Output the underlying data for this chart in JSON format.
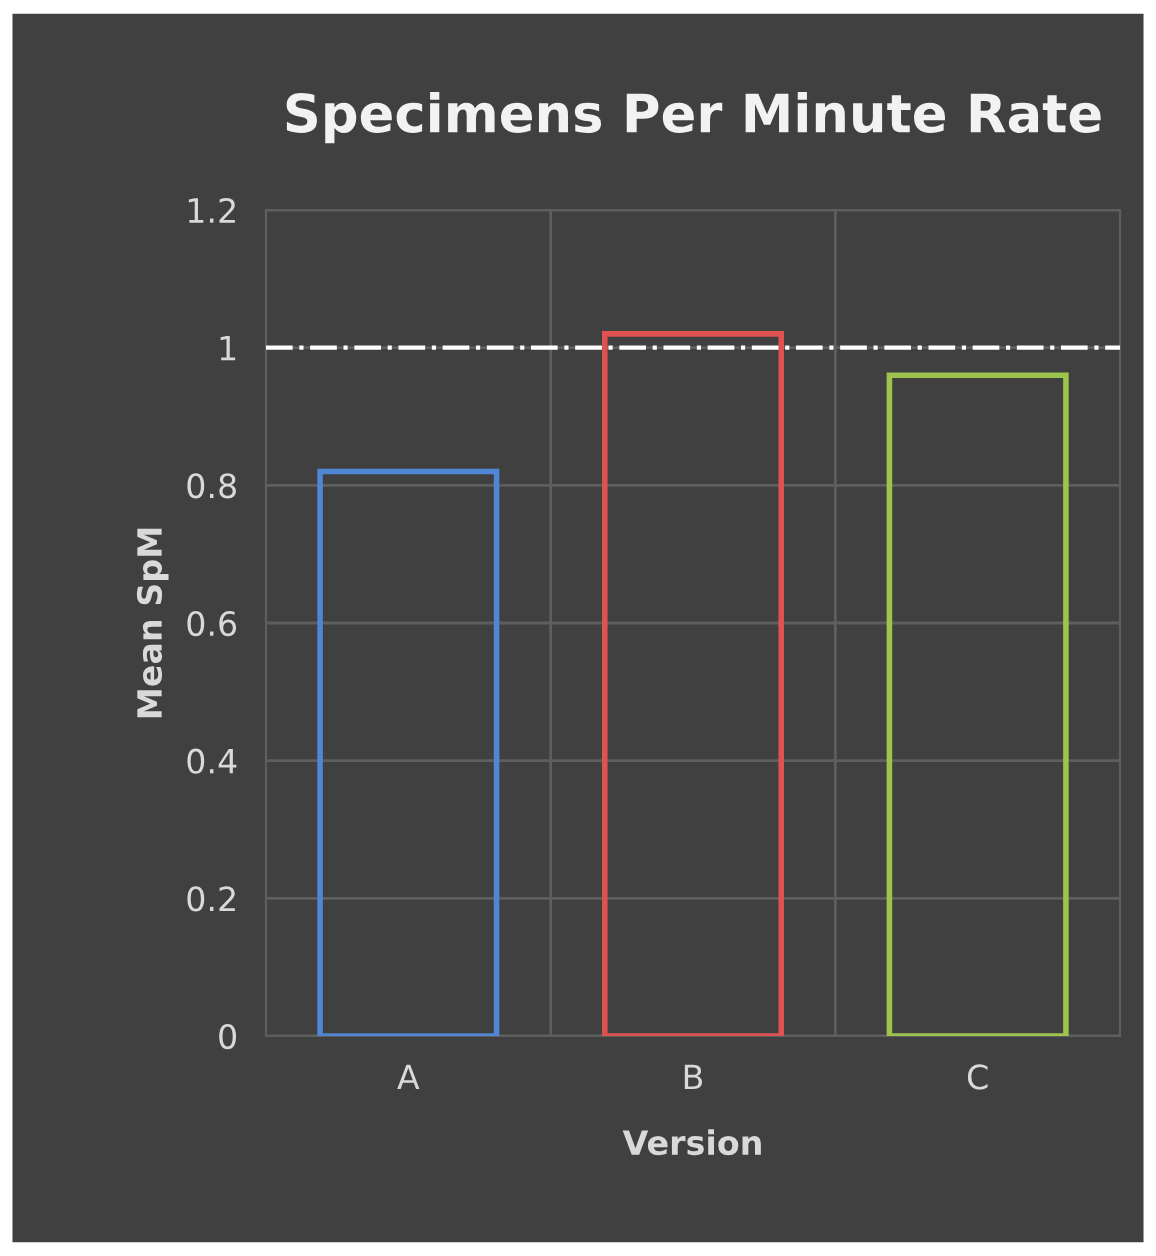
{
  "chart_data": {
    "type": "bar",
    "title": "Specimens Per Minute Rate",
    "xlabel": "Version",
    "ylabel": "Mean SpM",
    "categories": [
      "A",
      "B",
      "C"
    ],
    "values": [
      0.82,
      1.02,
      0.96
    ],
    "colors": [
      "#4f86d6",
      "#e05252",
      "#9dc44d"
    ],
    "ylim": [
      0,
      1.2
    ],
    "yticks": [
      0,
      0.2,
      0.4,
      0.6,
      0.8,
      1,
      1.2
    ],
    "grid": true,
    "ref_lines": [
      {
        "axis": "y",
        "value": 1,
        "color": "#ffffff",
        "line_style": "dashdot"
      }
    ]
  }
}
